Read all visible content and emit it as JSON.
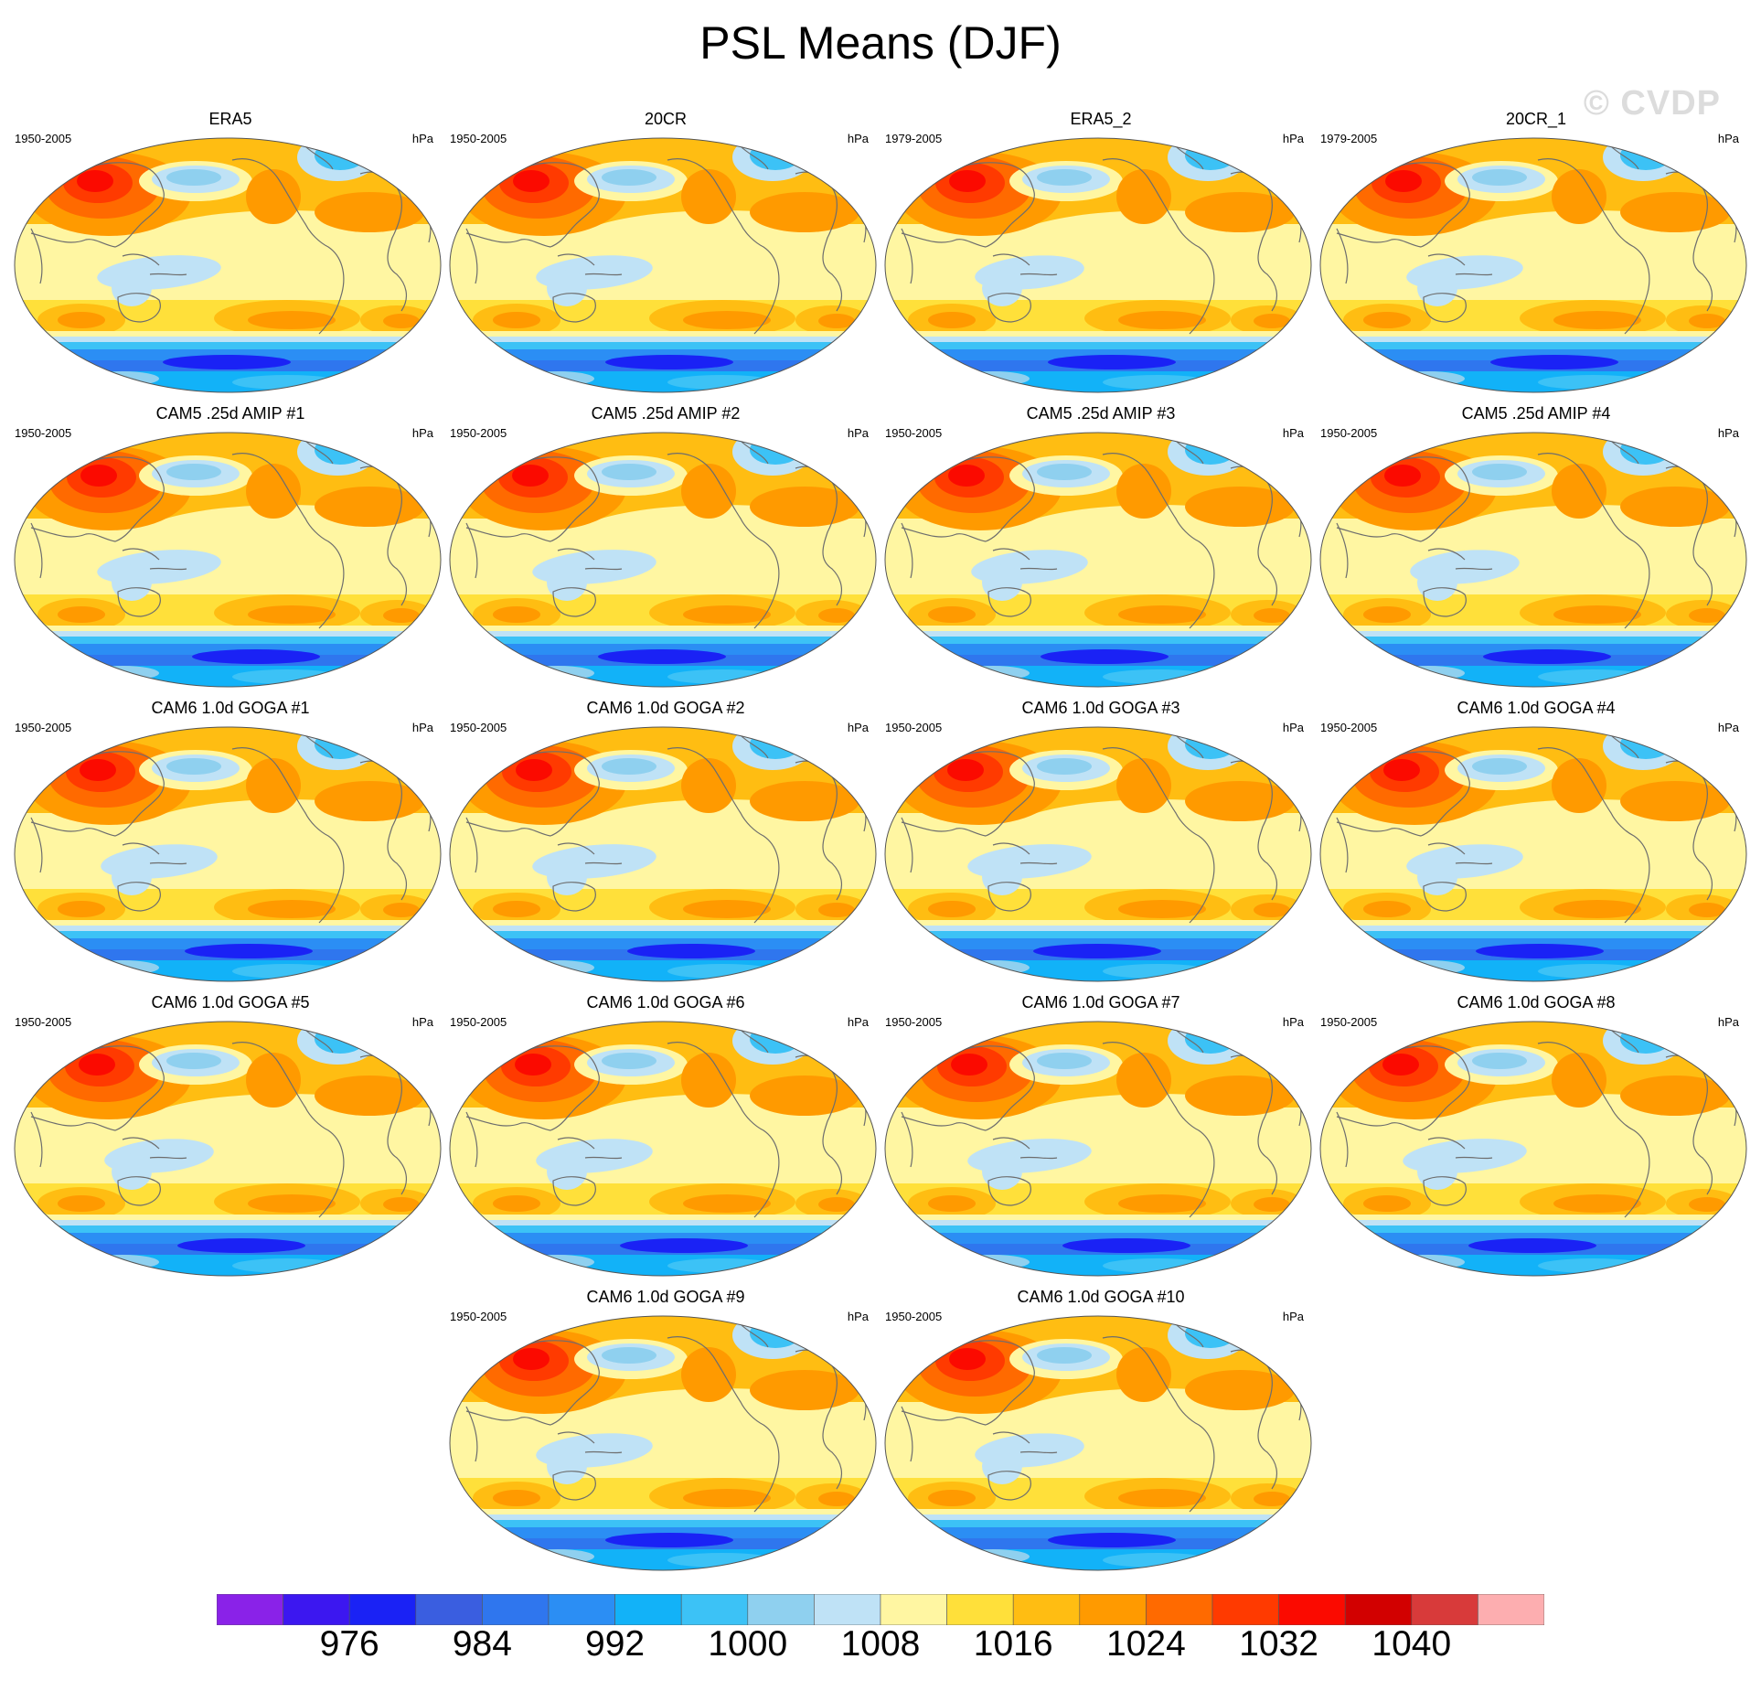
{
  "figure": {
    "title": "PSL Means (DJF)",
    "watermark": "© CVDP"
  },
  "panels": [
    {
      "title": "ERA5",
      "period": "1950-2005",
      "units": "hPa"
    },
    {
      "title": "20CR",
      "period": "1950-2005",
      "units": "hPa"
    },
    {
      "title": "ERA5_2",
      "period": "1979-2005",
      "units": "hPa"
    },
    {
      "title": "20CR_1",
      "period": "1979-2005",
      "units": "hPa"
    },
    {
      "title": "CAM5 .25d AMIP #1",
      "period": "1950-2005",
      "units": "hPa"
    },
    {
      "title": "CAM5 .25d AMIP #2",
      "period": "1950-2005",
      "units": "hPa"
    },
    {
      "title": "CAM5 .25d AMIP #3",
      "period": "1950-2005",
      "units": "hPa"
    },
    {
      "title": "CAM5 .25d AMIP #4",
      "period": "1950-2005",
      "units": "hPa"
    },
    {
      "title": "CAM6 1.0d GOGA #1",
      "period": "1950-2005",
      "units": "hPa"
    },
    {
      "title": "CAM6 1.0d GOGA #2",
      "period": "1950-2005",
      "units": "hPa"
    },
    {
      "title": "CAM6 1.0d GOGA #3",
      "period": "1950-2005",
      "units": "hPa"
    },
    {
      "title": "CAM6 1.0d GOGA #4",
      "period": "1950-2005",
      "units": "hPa"
    },
    {
      "title": "CAM6 1.0d GOGA #5",
      "period": "1950-2005",
      "units": "hPa"
    },
    {
      "title": "CAM6 1.0d GOGA #6",
      "period": "1950-2005",
      "units": "hPa"
    },
    {
      "title": "CAM6 1.0d GOGA #7",
      "period": "1950-2005",
      "units": "hPa"
    },
    {
      "title": "CAM6 1.0d GOGA #8",
      "period": "1950-2005",
      "units": "hPa"
    },
    {
      "title": "CAM6 1.0d GOGA #9",
      "period": "1950-2005",
      "units": "hPa"
    },
    {
      "title": "CAM6 1.0d GOGA #10",
      "period": "1950-2005",
      "units": "hPa"
    }
  ],
  "colorbar": {
    "colors": [
      "#8a22e8",
      "#3c17f0",
      "#1a22f5",
      "#3a5ee0",
      "#2f76ee",
      "#2b8ef4",
      "#12b2f8",
      "#3cc2f6",
      "#8fd0ef",
      "#bfe2f6",
      "#fff6a2",
      "#ffe03a",
      "#ffbd12",
      "#ff9a00",
      "#ff6a00",
      "#ff3a00",
      "#fb0a00",
      "#d20000",
      "#d83a3a",
      "#fdaeb0"
    ],
    "labels": [
      "976",
      "984",
      "992",
      "1000",
      "1008",
      "1016",
      "1024",
      "1032",
      "1040"
    ]
  }
}
